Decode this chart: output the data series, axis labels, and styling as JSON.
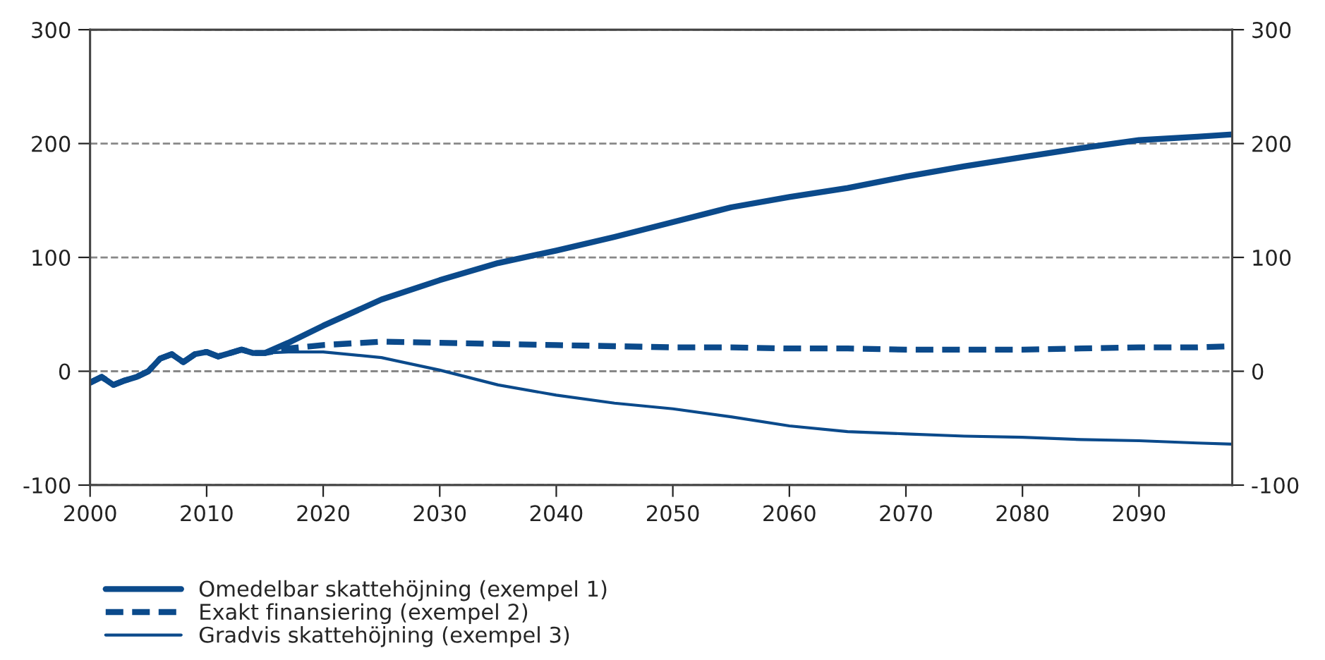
{
  "chart_data": {
    "type": "line",
    "x": [
      2000,
      2001,
      2002,
      2003,
      2004,
      2005,
      2006,
      2007,
      2008,
      2009,
      2010,
      2011,
      2012,
      2013,
      2014,
      2015,
      2017,
      2020,
      2025,
      2030,
      2035,
      2040,
      2045,
      2050,
      2055,
      2060,
      2065,
      2070,
      2075,
      2080,
      2085,
      2090,
      2095,
      2098
    ],
    "series": [
      {
        "name": "Omedelbar skattehöjning (exempel 1)",
        "color": "#0b4a8b",
        "line_style": "solid",
        "values": [
          -10,
          -5,
          -12,
          -8,
          -5,
          0,
          11,
          15,
          8,
          15,
          17,
          13,
          16,
          19,
          16,
          16,
          25,
          40,
          63,
          80,
          95,
          106,
          118,
          131,
          144,
          153,
          161,
          171,
          180,
          188,
          196,
          203,
          206,
          208
        ]
      },
      {
        "name": "Exakt finansiering (exempel 2)",
        "color": "#0b4a8b",
        "line_style": "dashed",
        "values": [
          -10,
          -5,
          -12,
          -8,
          -5,
          0,
          11,
          15,
          8,
          15,
          17,
          13,
          16,
          19,
          16,
          16,
          20,
          23,
          26,
          25,
          24,
          23,
          22,
          21,
          21,
          20,
          20,
          19,
          19,
          19,
          20,
          21,
          21,
          22
        ]
      },
      {
        "name": "Gradvis skattehöjning (exempel 3)",
        "color": "#0b4a8b",
        "line_style": "solid",
        "values": [
          -10,
          -5,
          -12,
          -8,
          -5,
          0,
          11,
          15,
          8,
          15,
          17,
          13,
          16,
          19,
          16,
          16,
          17,
          17,
          12,
          1,
          -12,
          -21,
          -28,
          -33,
          -40,
          -48,
          -53,
          -55,
          -57,
          -58,
          -60,
          -61,
          -63,
          -64
        ]
      }
    ],
    "xlim": [
      2000,
      2098
    ],
    "xticks": [
      2000,
      2010,
      2020,
      2030,
      2040,
      2050,
      2060,
      2070,
      2080,
      2090
    ],
    "ylim": [
      -100,
      300
    ],
    "yticks": [
      -100,
      0,
      100,
      200,
      300
    ],
    "y2lim": [
      -100,
      300
    ],
    "y2ticks": [
      -100,
      0,
      100,
      200,
      300
    ],
    "grid": "y",
    "legend": "bottom left",
    "marker": "none"
  }
}
